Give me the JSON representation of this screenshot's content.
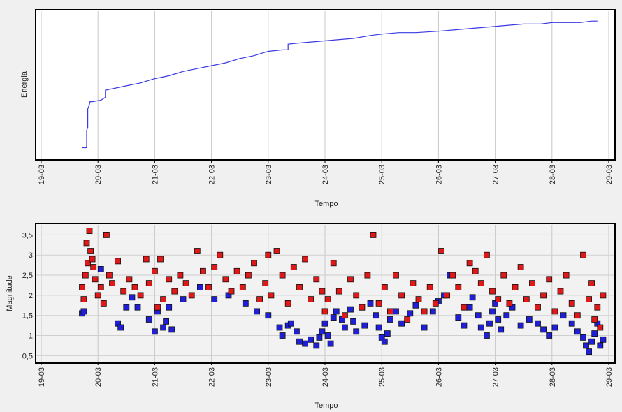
{
  "chart_data": [
    {
      "type": "line",
      "ylabel": "Energia",
      "xlabel": "Tempo",
      "x_ticks": [
        "19-03",
        "20-03",
        "21-03",
        "22-03",
        "23-03",
        "24-03",
        "25-03",
        "26-03",
        "27-03",
        "28-03",
        "29-03"
      ],
      "xlim": [
        0,
        10
      ],
      "ylim": [
        0,
        1
      ],
      "grid": "vertical",
      "series": [
        {
          "color": "#3a3ae0",
          "x": [
            0.72,
            0.8,
            0.8,
            0.82,
            0.82,
            0.85,
            0.86,
            0.88,
            0.9,
            1.05,
            1.13,
            1.13,
            1.25,
            1.5,
            1.75,
            2.0,
            2.25,
            2.5,
            2.75,
            3.0,
            3.25,
            3.5,
            3.75,
            4.0,
            4.25,
            4.35,
            4.35,
            4.6,
            4.9,
            5.2,
            5.5,
            5.8,
            6.0,
            6.3,
            6.6,
            7.0,
            7.3,
            7.6,
            7.9,
            8.2,
            8.5,
            8.8,
            9.0,
            9.2,
            9.5,
            9.7,
            9.8,
            9.8
          ],
          "y": [
            0.08,
            0.08,
            0.2,
            0.22,
            0.35,
            0.38,
            0.4,
            0.4,
            0.4,
            0.41,
            0.43,
            0.48,
            0.49,
            0.51,
            0.53,
            0.56,
            0.58,
            0.61,
            0.63,
            0.65,
            0.67,
            0.7,
            0.72,
            0.75,
            0.76,
            0.76,
            0.8,
            0.81,
            0.82,
            0.83,
            0.84,
            0.86,
            0.87,
            0.88,
            0.88,
            0.89,
            0.9,
            0.91,
            0.92,
            0.93,
            0.94,
            0.94,
            0.95,
            0.95,
            0.95,
            0.96,
            0.96,
            0.96
          ]
        }
      ]
    },
    {
      "type": "scatter",
      "ylabel": "Magnitude",
      "xlabel": "Tempo",
      "x_ticks": [
        "19-03",
        "20-03",
        "21-03",
        "22-03",
        "23-03",
        "24-03",
        "25-03",
        "26-03",
        "27-03",
        "28-03",
        "29-03"
      ],
      "y_ticks": [
        "0,5",
        "1",
        "1,5",
        "2",
        "2,5",
        "3",
        "3,5"
      ],
      "y_tick_values": [
        0.5,
        1,
        1.5,
        2,
        2.5,
        3,
        3.5
      ],
      "xlim": [
        0,
        10
      ],
      "ylim": [
        0.35,
        3.75
      ],
      "grid": "both",
      "series": [
        {
          "color": "#1f1fd8",
          "points": [
            [
              0.72,
              1.55
            ],
            [
              0.75,
              1.6
            ],
            [
              1.05,
              2.65
            ],
            [
              1.35,
              1.3
            ],
            [
              1.4,
              1.2
            ],
            [
              1.5,
              1.7
            ],
            [
              1.6,
              1.95
            ],
            [
              1.7,
              1.7
            ],
            [
              1.9,
              1.4
            ],
            [
              2.0,
              1.1
            ],
            [
              2.15,
              1.2
            ],
            [
              2.2,
              1.35
            ],
            [
              2.3,
              1.15
            ],
            [
              2.05,
              1.6
            ],
            [
              2.25,
              1.7
            ],
            [
              2.5,
              1.9
            ],
            [
              2.8,
              2.2
            ],
            [
              3.05,
              1.9
            ],
            [
              3.3,
              2.0
            ],
            [
              3.6,
              1.8
            ],
            [
              3.8,
              1.6
            ],
            [
              4.0,
              1.5
            ],
            [
              4.2,
              1.2
            ],
            [
              4.25,
              1.0
            ],
            [
              4.35,
              1.25
            ],
            [
              4.4,
              1.3
            ],
            [
              4.5,
              1.1
            ],
            [
              4.55,
              0.85
            ],
            [
              4.65,
              0.8
            ],
            [
              4.75,
              0.9
            ],
            [
              4.85,
              0.75
            ],
            [
              4.9,
              0.95
            ],
            [
              4.95,
              1.1
            ],
            [
              5.0,
              1.3
            ],
            [
              5.05,
              1.0
            ],
            [
              5.1,
              0.8
            ],
            [
              5.15,
              1.45
            ],
            [
              5.2,
              1.6
            ],
            [
              5.3,
              1.4
            ],
            [
              5.35,
              1.2
            ],
            [
              5.45,
              1.65
            ],
            [
              5.5,
              1.35
            ],
            [
              5.55,
              1.1
            ],
            [
              5.65,
              1.7
            ],
            [
              5.7,
              1.25
            ],
            [
              5.8,
              1.8
            ],
            [
              5.9,
              1.5
            ],
            [
              5.95,
              1.2
            ],
            [
              6.0,
              0.95
            ],
            [
              6.05,
              0.85
            ],
            [
              6.1,
              1.05
            ],
            [
              6.15,
              1.4
            ],
            [
              6.25,
              1.6
            ],
            [
              6.35,
              1.3
            ],
            [
              6.5,
              1.55
            ],
            [
              6.6,
              1.75
            ],
            [
              6.75,
              1.2
            ],
            [
              6.9,
              1.6
            ],
            [
              7.0,
              1.85
            ],
            [
              7.1,
              2.0
            ],
            [
              7.2,
              2.5
            ],
            [
              7.35,
              1.45
            ],
            [
              7.45,
              1.25
            ],
            [
              7.55,
              1.7
            ],
            [
              7.6,
              1.95
            ],
            [
              7.7,
              1.5
            ],
            [
              7.75,
              1.2
            ],
            [
              7.85,
              1.0
            ],
            [
              7.9,
              1.3
            ],
            [
              7.95,
              1.6
            ],
            [
              8.0,
              1.8
            ],
            [
              8.05,
              1.4
            ],
            [
              8.1,
              1.15
            ],
            [
              8.2,
              1.5
            ],
            [
              8.3,
              1.7
            ],
            [
              8.45,
              1.25
            ],
            [
              8.6,
              1.4
            ],
            [
              8.75,
              1.3
            ],
            [
              8.85,
              1.15
            ],
            [
              8.95,
              1.0
            ],
            [
              9.05,
              1.2
            ],
            [
              9.2,
              1.5
            ],
            [
              9.35,
              1.3
            ],
            [
              9.45,
              1.1
            ],
            [
              9.55,
              0.95
            ],
            [
              9.6,
              0.75
            ],
            [
              9.65,
              0.6
            ],
            [
              9.7,
              0.85
            ],
            [
              9.75,
              1.05
            ],
            [
              9.8,
              1.3
            ],
            [
              9.85,
              0.75
            ],
            [
              9.9,
              0.9
            ]
          ]
        },
        {
          "color": "#e01818",
          "points": [
            [
              0.72,
              2.2
            ],
            [
              0.75,
              1.9
            ],
            [
              0.78,
              2.5
            ],
            [
              0.8,
              3.3
            ],
            [
              0.82,
              2.8
            ],
            [
              0.85,
              3.6
            ],
            [
              0.87,
              3.1
            ],
            [
              0.9,
              2.9
            ],
            [
              0.92,
              2.7
            ],
            [
              0.95,
              2.4
            ],
            [
              1.0,
              2.0
            ],
            [
              1.05,
              2.2
            ],
            [
              1.1,
              1.8
            ],
            [
              1.15,
              3.5
            ],
            [
              1.2,
              2.5
            ],
            [
              1.25,
              2.3
            ],
            [
              1.35,
              2.85
            ],
            [
              1.45,
              2.1
            ],
            [
              1.55,
              2.4
            ],
            [
              1.65,
              2.2
            ],
            [
              1.75,
              2.0
            ],
            [
              1.85,
              2.9
            ],
            [
              1.9,
              2.3
            ],
            [
              2.0,
              2.6
            ],
            [
              2.05,
              1.7
            ],
            [
              2.1,
              2.9
            ],
            [
              2.15,
              1.9
            ],
            [
              2.25,
              2.4
            ],
            [
              2.35,
              2.1
            ],
            [
              2.45,
              2.5
            ],
            [
              2.55,
              2.3
            ],
            [
              2.65,
              2.0
            ],
            [
              2.75,
              3.1
            ],
            [
              2.85,
              2.6
            ],
            [
              2.95,
              2.2
            ],
            [
              3.05,
              2.7
            ],
            [
              3.15,
              3.0
            ],
            [
              3.25,
              2.4
            ],
            [
              3.35,
              2.1
            ],
            [
              3.45,
              2.6
            ],
            [
              3.55,
              2.2
            ],
            [
              3.65,
              2.5
            ],
            [
              3.75,
              2.8
            ],
            [
              3.85,
              1.9
            ],
            [
              3.95,
              2.3
            ],
            [
              4.0,
              3.0
            ],
            [
              4.05,
              2.0
            ],
            [
              4.15,
              3.1
            ],
            [
              4.25,
              2.5
            ],
            [
              4.35,
              1.8
            ],
            [
              4.45,
              2.7
            ],
            [
              4.55,
              2.2
            ],
            [
              4.65,
              2.9
            ],
            [
              4.75,
              1.9
            ],
            [
              4.85,
              2.4
            ],
            [
              4.95,
              2.1
            ],
            [
              5.0,
              1.6
            ],
            [
              5.05,
              1.9
            ],
            [
              5.15,
              2.8
            ],
            [
              5.25,
              2.1
            ],
            [
              5.35,
              1.5
            ],
            [
              5.45,
              2.4
            ],
            [
              5.55,
              2.0
            ],
            [
              5.65,
              1.7
            ],
            [
              5.75,
              2.5
            ],
            [
              5.85,
              3.5
            ],
            [
              5.95,
              1.8
            ],
            [
              6.05,
              2.2
            ],
            [
              6.15,
              1.6
            ],
            [
              6.25,
              2.5
            ],
            [
              6.35,
              2.0
            ],
            [
              6.45,
              1.4
            ],
            [
              6.55,
              2.3
            ],
            [
              6.65,
              1.9
            ],
            [
              6.75,
              1.6
            ],
            [
              6.85,
              2.2
            ],
            [
              6.95,
              1.8
            ],
            [
              7.05,
              3.1
            ],
            [
              7.15,
              2.0
            ],
            [
              7.25,
              2.5
            ],
            [
              7.35,
              2.2
            ],
            [
              7.45,
              1.7
            ],
            [
              7.55,
              2.8
            ],
            [
              7.65,
              2.6
            ],
            [
              7.75,
              2.3
            ],
            [
              7.85,
              3.0
            ],
            [
              7.95,
              2.1
            ],
            [
              8.05,
              1.9
            ],
            [
              8.15,
              2.5
            ],
            [
              8.25,
              1.8
            ],
            [
              8.35,
              2.2
            ],
            [
              8.45,
              2.7
            ],
            [
              8.55,
              1.9
            ],
            [
              8.65,
              2.3
            ],
            [
              8.75,
              1.7
            ],
            [
              8.85,
              2.0
            ],
            [
              8.95,
              2.4
            ],
            [
              9.05,
              1.6
            ],
            [
              9.15,
              2.1
            ],
            [
              9.25,
              2.5
            ],
            [
              9.35,
              1.8
            ],
            [
              9.45,
              1.5
            ],
            [
              9.55,
              3.0
            ],
            [
              9.65,
              1.9
            ],
            [
              9.7,
              2.3
            ],
            [
              9.75,
              1.4
            ],
            [
              9.8,
              1.7
            ],
            [
              9.85,
              1.2
            ],
            [
              9.9,
              2.0
            ]
          ]
        }
      ]
    }
  ]
}
